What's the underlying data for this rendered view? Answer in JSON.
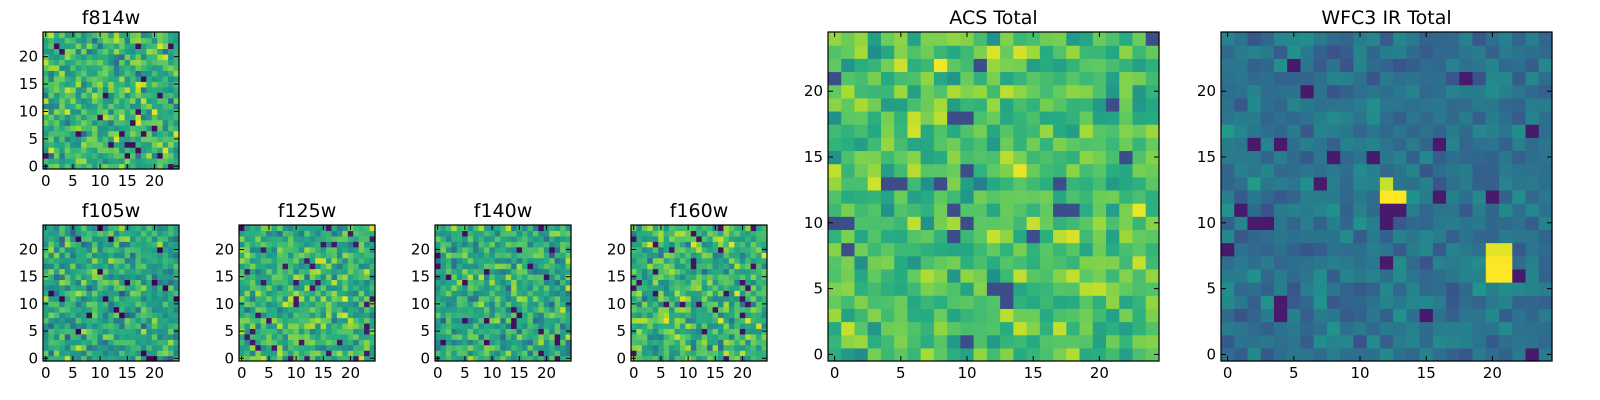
{
  "colors": {
    "colormap": "viridis",
    "frame": "#000000",
    "background": "#ffffff"
  },
  "chart_data": [
    {
      "type": "heatmap",
      "title": "f814w",
      "grid_size": 25,
      "xlim": [
        -0.5,
        24.5
      ],
      "ylim": [
        -0.5,
        24.5
      ],
      "xticks": [
        0,
        5,
        10,
        15,
        20
      ],
      "yticks": [
        0,
        5,
        10,
        15,
        20
      ],
      "xtick_labels": [
        "0",
        "5",
        "10",
        "15",
        "20"
      ],
      "ytick_labels": [
        "0",
        "5",
        "10",
        "15",
        "20"
      ],
      "colormap": "viridis",
      "random_seed": 814,
      "value_mean": 0.66,
      "value_spread": 0.26,
      "hot_spots": []
    },
    {
      "type": "heatmap",
      "title": "f105w",
      "grid_size": 25,
      "xlim": [
        -0.5,
        24.5
      ],
      "ylim": [
        -0.5,
        24.5
      ],
      "xticks": [
        0,
        5,
        10,
        15,
        20
      ],
      "yticks": [
        0,
        5,
        10,
        15,
        20
      ],
      "xtick_labels": [
        "0",
        "5",
        "10",
        "15",
        "20"
      ],
      "ytick_labels": [
        "0",
        "5",
        "10",
        "15",
        "20"
      ],
      "colormap": "viridis",
      "random_seed": 105,
      "value_mean": 0.6,
      "value_spread": 0.25,
      "hot_spots": []
    },
    {
      "type": "heatmap",
      "title": "f125w",
      "grid_size": 25,
      "xlim": [
        -0.5,
        24.5
      ],
      "ylim": [
        -0.5,
        24.5
      ],
      "xticks": [
        0,
        5,
        10,
        15,
        20
      ],
      "yticks": [
        0,
        5,
        10,
        15,
        20
      ],
      "xtick_labels": [
        "0",
        "5",
        "10",
        "15",
        "20"
      ],
      "ytick_labels": [
        "0",
        "5",
        "10",
        "15",
        "20"
      ],
      "colormap": "viridis",
      "random_seed": 125,
      "value_mean": 0.66,
      "value_spread": 0.24,
      "hot_spots": []
    },
    {
      "type": "heatmap",
      "title": "f140w",
      "grid_size": 25,
      "xlim": [
        -0.5,
        24.5
      ],
      "ylim": [
        -0.5,
        24.5
      ],
      "xticks": [
        0,
        5,
        10,
        15,
        20
      ],
      "yticks": [
        0,
        5,
        10,
        15,
        20
      ],
      "xtick_labels": [
        "0",
        "5",
        "10",
        "15",
        "20"
      ],
      "ytick_labels": [
        "0",
        "5",
        "10",
        "15",
        "20"
      ],
      "colormap": "viridis",
      "random_seed": 140,
      "value_mean": 0.62,
      "value_spread": 0.24,
      "hot_spots": []
    },
    {
      "type": "heatmap",
      "title": "f160w",
      "grid_size": 25,
      "xlim": [
        -0.5,
        24.5
      ],
      "ylim": [
        -0.5,
        24.5
      ],
      "xticks": [
        0,
        5,
        10,
        15,
        20
      ],
      "yticks": [
        0,
        5,
        10,
        15,
        20
      ],
      "xtick_labels": [
        "0",
        "5",
        "10",
        "15",
        "20"
      ],
      "ytick_labels": [
        "0",
        "5",
        "10",
        "15",
        "20"
      ],
      "colormap": "viridis",
      "random_seed": 160,
      "value_mean": 0.66,
      "value_spread": 0.25,
      "hot_spots": []
    },
    {
      "type": "heatmap",
      "title": "ACS Total",
      "grid_size": 25,
      "xlim": [
        -0.5,
        24.5
      ],
      "ylim": [
        -0.5,
        24.5
      ],
      "xticks": [
        0,
        5,
        10,
        15,
        20
      ],
      "yticks": [
        0,
        5,
        10,
        15,
        20
      ],
      "xtick_labels": [
        "0",
        "5",
        "10",
        "15",
        "20"
      ],
      "ytick_labels": [
        "0",
        "5",
        "10",
        "15",
        "20"
      ],
      "colormap": "viridis",
      "random_seed": 2001,
      "value_mean": 0.72,
      "value_spread": 0.2,
      "hot_spots": []
    },
    {
      "type": "heatmap",
      "title": "WFC3 IR Total",
      "grid_size": 25,
      "xlim": [
        -0.5,
        24.5
      ],
      "ylim": [
        -0.5,
        24.5
      ],
      "xticks": [
        0,
        5,
        10,
        15,
        20
      ],
      "yticks": [
        0,
        5,
        10,
        15,
        20
      ],
      "xtick_labels": [
        "0",
        "5",
        "10",
        "15",
        "20"
      ],
      "ytick_labels": [
        "0",
        "5",
        "10",
        "15",
        "20"
      ],
      "colormap": "viridis",
      "random_seed": 3001,
      "value_mean": 0.38,
      "value_spread": 0.12,
      "hot_spots": [
        {
          "x": 20,
          "y": 6,
          "value": 1.0
        },
        {
          "x": 21,
          "y": 6,
          "value": 1.0
        },
        {
          "x": 20,
          "y": 7,
          "value": 1.0
        },
        {
          "x": 21,
          "y": 7,
          "value": 1.0
        },
        {
          "x": 20,
          "y": 8,
          "value": 0.96
        },
        {
          "x": 21,
          "y": 8,
          "value": 0.96
        },
        {
          "x": 12,
          "y": 12,
          "value": 1.0
        },
        {
          "x": 13,
          "y": 12,
          "value": 1.0
        },
        {
          "x": 12,
          "y": 13,
          "value": 0.92
        }
      ]
    }
  ]
}
